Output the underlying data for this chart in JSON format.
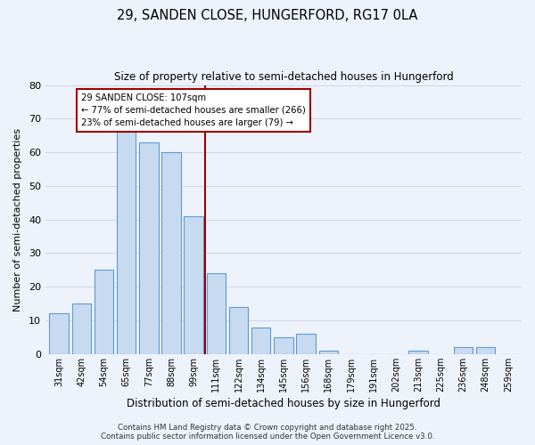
{
  "title": "29, SANDEN CLOSE, HUNGERFORD, RG17 0LA",
  "subtitle": "Size of property relative to semi-detached houses in Hungerford",
  "xlabel": "Distribution of semi-detached houses by size in Hungerford",
  "ylabel": "Number of semi-detached properties",
  "categories": [
    "31sqm",
    "42sqm",
    "54sqm",
    "65sqm",
    "77sqm",
    "88sqm",
    "99sqm",
    "111sqm",
    "122sqm",
    "134sqm",
    "145sqm",
    "156sqm",
    "168sqm",
    "179sqm",
    "191sqm",
    "202sqm",
    "213sqm",
    "225sqm",
    "236sqm",
    "248sqm",
    "259sqm"
  ],
  "values": [
    12,
    15,
    25,
    66,
    63,
    60,
    41,
    24,
    14,
    8,
    5,
    6,
    1,
    0,
    0,
    0,
    1,
    0,
    2,
    2,
    0
  ],
  "bar_color": "#c8daf0",
  "bar_edge_color": "#5b9bd5",
  "background_color": "#eef2fa",
  "grid_color": "#d0d8e8",
  "marker_color": "#990000",
  "marker_label": "29 SANDEN CLOSE: 107sqm",
  "annotation_line1": "← 77% of semi-detached houses are smaller (266)",
  "annotation_line2": "23% of semi-detached houses are larger (79) →",
  "ylim": [
    0,
    80
  ],
  "yticks": [
    0,
    10,
    20,
    30,
    40,
    50,
    60,
    70,
    80
  ],
  "footer_line1": "Contains HM Land Registry data © Crown copyright and database right 2025.",
  "footer_line2": "Contains public sector information licensed under the Open Government Licence v3.0."
}
